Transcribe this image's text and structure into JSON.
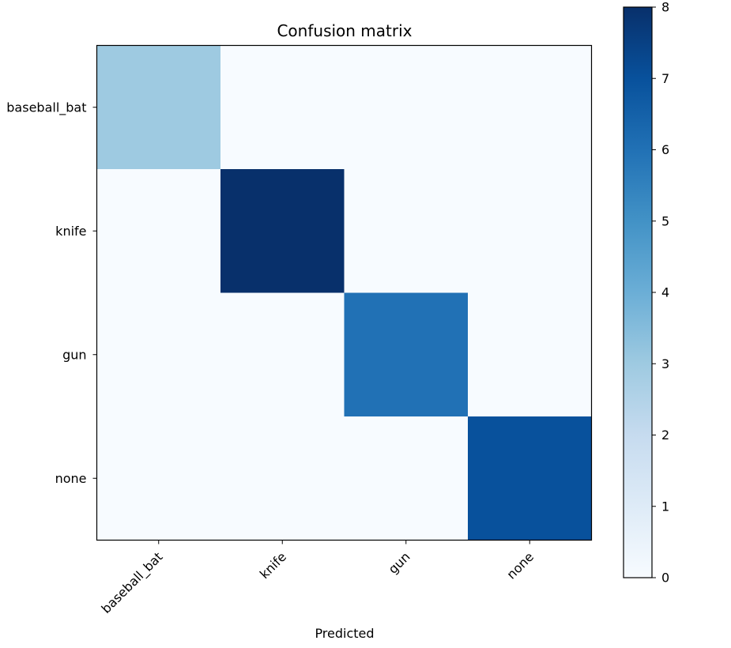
{
  "chart_data": {
    "type": "heatmap",
    "title": "Confusion matrix",
    "xlabel": "Predicted",
    "ylabel": "",
    "x_categories": [
      "baseball_bat",
      "knife",
      "gun",
      "none"
    ],
    "y_categories": [
      "baseball_bat",
      "knife",
      "gun",
      "none"
    ],
    "values": [
      [
        3,
        0,
        0,
        0
      ],
      [
        0,
        8,
        0,
        0
      ],
      [
        0,
        0,
        6,
        0
      ],
      [
        0,
        0,
        0,
        7
      ]
    ],
    "colormap": "Blues",
    "colorbar": {
      "min": 0,
      "max": 8,
      "ticks": [
        0,
        1,
        2,
        3,
        4,
        5,
        6,
        7,
        8
      ]
    },
    "x_tick_rotation_deg": 45,
    "grid": false
  }
}
